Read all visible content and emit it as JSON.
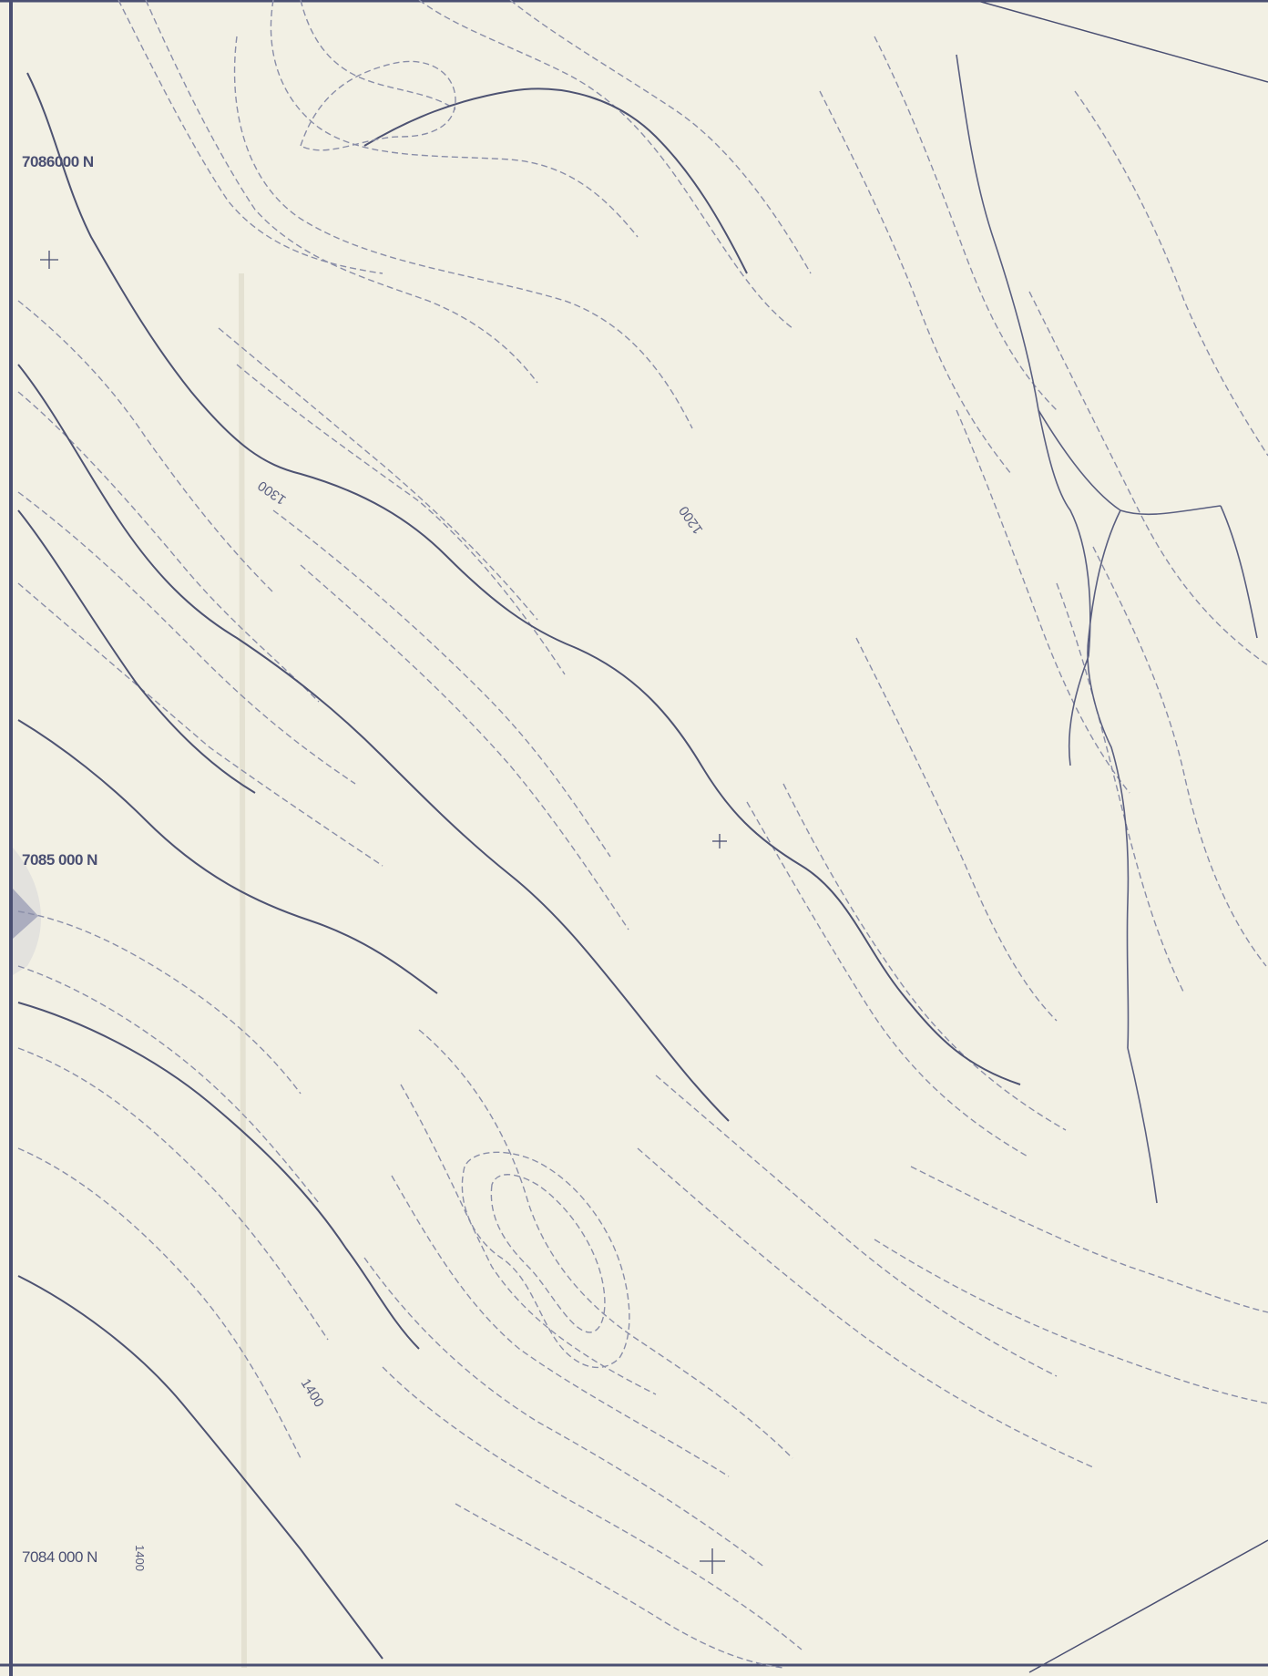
{
  "map": {
    "northing_labels": [
      "7086000 N",
      "7085 000 N",
      "7084 000 N"
    ],
    "contour_labels": [
      "1300",
      "1200",
      "1400",
      "1400"
    ],
    "colors": {
      "paper": "#f2f0e4",
      "ink": "#4a4f72",
      "contour_index": "#4e5372",
      "contour_intermediate": "#8a8ea8",
      "stream": "#5a5f80"
    },
    "icons": [
      "crosshair-icon",
      "crosshair-icon",
      "crosshair-icon"
    ]
  }
}
